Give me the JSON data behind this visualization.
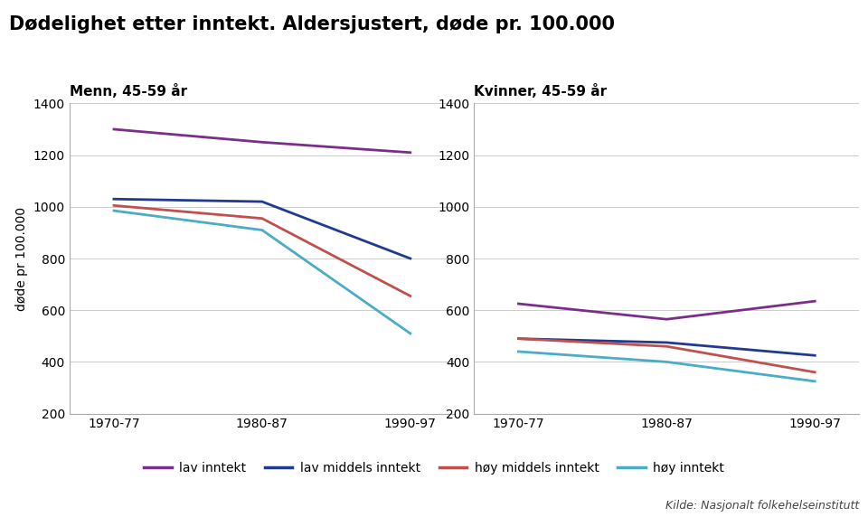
{
  "title": "Dødelighet etter inntekt. Aldersjustert, døde pr. 100.000",
  "ylabel": "døde pr 100.000",
  "subtitle_left": "Menn, 45-59 år",
  "subtitle_right": "Kvinner, 45-59 år",
  "x_labels": [
    "1970-77",
    "1980-87",
    "1990-97"
  ],
  "x_positions": [
    0,
    1,
    2
  ],
  "ylim": [
    200,
    1400
  ],
  "yticks": [
    200,
    400,
    600,
    800,
    1000,
    1200,
    1400
  ],
  "source_text": "Kilde: Nasjonalt folkehelseinstitutt",
  "series": {
    "lav inntekt": {
      "color": "#7B2D8B",
      "men": [
        1300,
        1250,
        1210
      ],
      "women": [
        625,
        565,
        635
      ]
    },
    "lav middels inntekt": {
      "color": "#1F3A8F",
      "men": [
        1030,
        1020,
        800
      ],
      "women": [
        490,
        475,
        425
      ]
    },
    "høy middels inntekt": {
      "color": "#C0504D",
      "men": [
        1005,
        955,
        655
      ],
      "women": [
        490,
        460,
        360
      ]
    },
    "høy inntekt": {
      "color": "#4BACC6",
      "men": [
        985,
        910,
        510
      ],
      "women": [
        440,
        400,
        325
      ]
    }
  },
  "legend_order": [
    "lav inntekt",
    "lav middels inntekt",
    "høy middels inntekt",
    "høy inntekt"
  ]
}
